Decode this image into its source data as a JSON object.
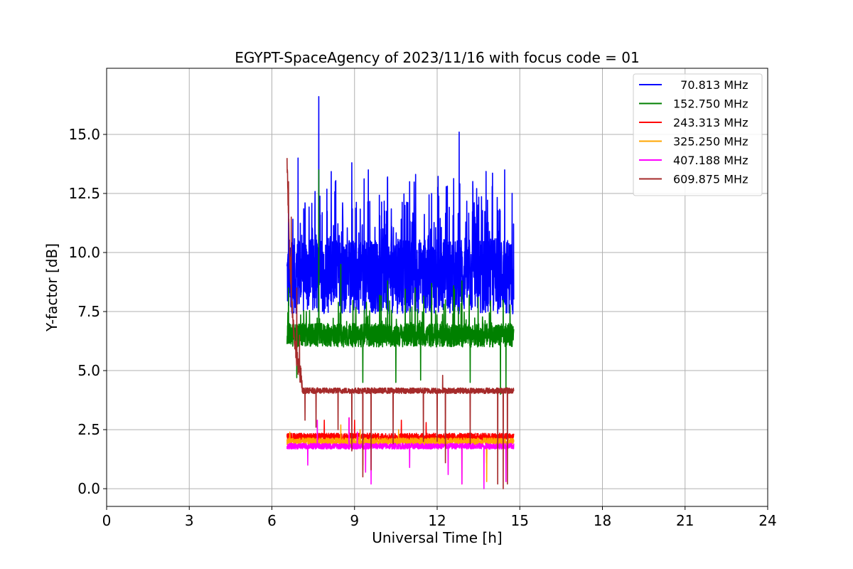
{
  "chart_data": {
    "type": "line",
    "title": "EGYPT-SpaceAgency of 2023/11/16 with focus code = 01",
    "xlabel": "Universal Time [h]",
    "ylabel": "Y-factor [dB]",
    "xlim": [
      0,
      24
    ],
    "ylim": [
      -0.75,
      17.8
    ],
    "xticks": [
      0,
      3,
      6,
      9,
      12,
      15,
      18,
      21,
      24
    ],
    "xtick_labels": [
      "0",
      "3",
      "6",
      "9",
      "12",
      "15",
      "18",
      "21",
      "24"
    ],
    "yticks": [
      0,
      2.5,
      5,
      7.5,
      10,
      12.5,
      15
    ],
    "ytick_labels": [
      "0.0",
      "2.5",
      "5.0",
      "7.5",
      "10.0",
      "12.5",
      "15.0"
    ],
    "grid": true,
    "legend_position": "top-right",
    "time_range": [
      6.55,
      14.78
    ],
    "series": [
      {
        "name": "  70.813 MHz",
        "color": "#0000ff",
        "baseline": 9.0,
        "noise": 1.6,
        "peaks": [
          [
            6.6,
            12.0
          ],
          [
            6.95,
            14.0
          ],
          [
            7.7,
            16.6
          ],
          [
            8.3,
            13.0
          ],
          [
            8.9,
            13.8
          ],
          [
            9.5,
            13.5
          ],
          [
            10.2,
            13.2
          ],
          [
            11.0,
            13.0
          ],
          [
            11.8,
            12.5
          ],
          [
            12.8,
            15.1
          ],
          [
            13.3,
            12.6
          ],
          [
            14.0,
            12.8
          ],
          [
            14.45,
            13.5
          ]
        ],
        "dips": []
      },
      {
        "name": "152.750 MHz",
        "color": "#008000",
        "baseline": 6.5,
        "noise": 0.5,
        "peaks": [
          [
            6.6,
            8.5
          ],
          [
            7.7,
            13.5
          ],
          [
            8.5,
            9.5
          ],
          [
            9.3,
            9.0
          ],
          [
            10.2,
            8.8
          ],
          [
            11.2,
            8.5
          ],
          [
            12.9,
            8.8
          ],
          [
            14.4,
            8.0
          ]
        ],
        "dips": [
          [
            6.9,
            4.7
          ],
          [
            9.3,
            4.5
          ],
          [
            10.5,
            4.5
          ],
          [
            11.4,
            4.6
          ],
          [
            13.2,
            4.5
          ],
          [
            14.3,
            4.0
          ],
          [
            14.5,
            4.2
          ]
        ]
      },
      {
        "name": "243.313 MHz",
        "color": "#ff0000",
        "baseline": 2.2,
        "noise": 0.15,
        "peaks": [
          [
            7.9,
            2.9
          ],
          [
            8.8,
            3.0
          ],
          [
            9.0,
            2.9
          ],
          [
            10.7,
            2.9
          ],
          [
            11.6,
            2.8
          ],
          [
            12.3,
            2.9
          ]
        ],
        "dips": [
          [
            9.3,
            1.0
          ],
          [
            13.8,
            1.1
          ]
        ]
      },
      {
        "name": "325.250 MHz",
        "color": "#ffa500",
        "baseline": 2.0,
        "noise": 0.15,
        "peaks": [
          [
            6.65,
            2.4
          ],
          [
            8.5,
            2.7
          ],
          [
            9.2,
            2.5
          ],
          [
            10.6,
            2.5
          ]
        ],
        "dips": [
          [
            9.3,
            0.8
          ],
          [
            12.9,
            0.2
          ],
          [
            13.8,
            0.3
          ]
        ]
      },
      {
        "name": "407.188 MHz",
        "color": "#ff00ff",
        "baseline": 1.8,
        "noise": 0.12,
        "peaks": [
          [
            7.65,
            2.9
          ],
          [
            8.8,
            3.0
          ],
          [
            9.1,
            2.4
          ]
        ],
        "dips": [
          [
            7.3,
            1.0
          ],
          [
            9.4,
            0.7
          ],
          [
            9.6,
            0.2
          ],
          [
            11.0,
            0.9
          ],
          [
            12.4,
            0.6
          ],
          [
            12.9,
            0.2
          ],
          [
            13.7,
            0.0
          ],
          [
            14.5,
            0.3
          ]
        ]
      },
      {
        "name": "609.875 MHz",
        "color": "#a52a2a",
        "baseline": 4.15,
        "noise": 0.12,
        "peaks": [
          [
            6.55,
            14.0
          ],
          [
            6.6,
            13.0
          ],
          [
            6.7,
            11.5
          ],
          [
            6.9,
            8.5
          ],
          [
            7.0,
            6.5
          ],
          [
            12.2,
            4.8
          ]
        ],
        "dips": [
          [
            7.2,
            2.9
          ],
          [
            7.6,
            2.6
          ],
          [
            8.4,
            2.5
          ],
          [
            8.9,
            1.6
          ],
          [
            9.3,
            0.5
          ],
          [
            9.6,
            0.8
          ],
          [
            10.4,
            1.9
          ],
          [
            11.5,
            2.0
          ],
          [
            12.0,
            2.0
          ],
          [
            12.3,
            1.1
          ],
          [
            13.2,
            1.9
          ],
          [
            14.2,
            0.2
          ],
          [
            14.4,
            0.0
          ],
          [
            14.55,
            0.2
          ]
        ]
      }
    ]
  }
}
